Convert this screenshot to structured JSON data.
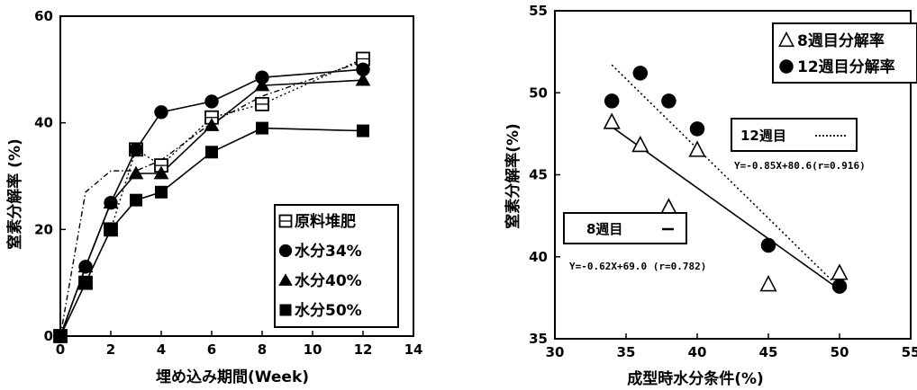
{
  "chart_data": [
    {
      "type": "line",
      "title": "",
      "xlabel": "埋め込み期間(Week)",
      "ylabel": "窒素分解率 (%)",
      "xlim": [
        0,
        14
      ],
      "ylim": [
        0,
        60
      ],
      "x_ticks": [
        "0",
        "2",
        "4",
        "6",
        "8",
        "10",
        "12",
        "14"
      ],
      "y_ticks": [
        "0",
        "20",
        "40",
        "60"
      ],
      "legend_position": "bottom-right",
      "series": [
        {
          "name": "原料堆肥",
          "marker": "open-square",
          "line": "dotted",
          "x": [
            0,
            1,
            2,
            3,
            4,
            6,
            8,
            12
          ],
          "y": [
            0,
            10,
            20,
            35,
            32,
            41,
            43.5,
            52
          ]
        },
        {
          "name": "水分34%",
          "marker": "circle",
          "line": "solid",
          "x": [
            0,
            1,
            2,
            3,
            4,
            6,
            8,
            12
          ],
          "y": [
            0,
            13,
            25,
            35,
            42,
            44,
            48.5,
            50
          ]
        },
        {
          "name": "水分40%",
          "marker": "triangle",
          "line": "solid",
          "x": [
            0,
            1,
            2,
            3,
            4,
            6,
            8,
            12
          ],
          "y": [
            0,
            13,
            25,
            30.5,
            30.5,
            39.5,
            47,
            48
          ]
        },
        {
          "name": "水分50%",
          "marker": "square",
          "line": "solid",
          "x": [
            0,
            1,
            2,
            3,
            4,
            6,
            8,
            12
          ],
          "y": [
            0,
            10,
            20,
            25.5,
            27,
            34.5,
            39,
            38.5
          ]
        },
        {
          "name": "",
          "marker": "none",
          "line": "dashdot",
          "x": [
            0,
            1,
            2,
            3,
            4,
            6,
            8,
            12
          ],
          "y": [
            0,
            27,
            31,
            31,
            33,
            40,
            45,
            51.5
          ]
        }
      ]
    },
    {
      "type": "scatter",
      "title": "",
      "xlabel": "成型時水分条件(%)",
      "ylabel": "窒素分解率(%)",
      "xlim": [
        30,
        55
      ],
      "ylim": [
        35,
        55
      ],
      "x_ticks": [
        "30",
        "35",
        "40",
        "45",
        "50",
        "55"
      ],
      "y_ticks": [
        "35",
        "40",
        "45",
        "50",
        "55"
      ],
      "legend_position": "top-right",
      "series": [
        {
          "name": "8週目分解率",
          "marker": "open-triangle",
          "x": [
            34,
            36,
            38,
            40,
            45,
            50
          ],
          "y": [
            48.2,
            46.8,
            43.0,
            46.5,
            38.3,
            39.0
          ]
        },
        {
          "name": "12週目分解率",
          "marker": "circle",
          "x": [
            34,
            36,
            38,
            40,
            45,
            50
          ],
          "y": [
            49.5,
            51.2,
            49.5,
            47.8,
            40.7,
            38.2
          ]
        }
      ],
      "regressions": [
        {
          "label": "8週目",
          "line": "solid",
          "equation": "Y=-0.62X+69.0 (r=0.782)",
          "slope": -0.62,
          "intercept": 69.0,
          "x_range": [
            34,
            50
          ]
        },
        {
          "label": "12週目",
          "line": "dotted",
          "equation": "Y=-0.85X+80.6(r=0.916)",
          "slope": -0.85,
          "intercept": 80.6,
          "x_range": [
            34,
            50
          ]
        }
      ]
    }
  ]
}
